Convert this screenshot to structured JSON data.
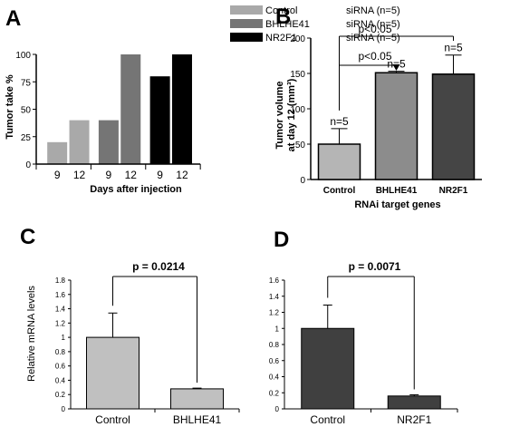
{
  "chart_data": [
    {
      "panel": "A",
      "type": "bar",
      "ylabel": "Tumor take %",
      "xlabel": "Days after injection",
      "ylim": [
        0,
        100
      ],
      "yticks": [
        0,
        25,
        50,
        75,
        100
      ],
      "legend": {
        "placement": "top",
        "entries": [
          {
            "name": "Control",
            "suffix": "siRNA (n=5)",
            "color": "#a9a9a9"
          },
          {
            "name": "BHLHE41",
            "suffix": "siRNA (n=5)",
            "color": "#757575"
          },
          {
            "name": "NR2F1",
            "suffix": "siRNA (n=5)",
            "color": "#000000"
          }
        ]
      },
      "groups": [
        {
          "name": "Control",
          "color": "#a9a9a9",
          "x": [
            "9",
            "12"
          ],
          "values": [
            20,
            40
          ]
        },
        {
          "name": "BHLHE41",
          "color": "#757575",
          "x": [
            "9",
            "12"
          ],
          "values": [
            40,
            100
          ]
        },
        {
          "name": "NR2F1",
          "color": "#000000",
          "x": [
            "9",
            "12"
          ],
          "values": [
            80,
            100
          ]
        }
      ]
    },
    {
      "panel": "B",
      "type": "bar",
      "ylabel_lines": [
        "Tumor volume",
        "at day 12 (mm³)"
      ],
      "xlabel": "RNAi target genes",
      "ylim": [
        0,
        200
      ],
      "yticks": [
        0,
        50,
        100,
        150,
        200
      ],
      "categories": [
        "Control",
        "BHLHE41",
        "NR2F1"
      ],
      "values": [
        50,
        151,
        149
      ],
      "errors": [
        22,
        2,
        27
      ],
      "colors": [
        "#b5b5b5",
        "#8c8c8c",
        "#454545"
      ],
      "n_labels": [
        "n=5",
        "n=5",
        "n=5"
      ],
      "significance": [
        {
          "label": "p<0.05",
          "from": "Control",
          "to": "NR2F1"
        },
        {
          "label": "p<0.05",
          "from": "Control",
          "to": "BHLHE41"
        }
      ]
    },
    {
      "panel": "C",
      "type": "bar",
      "ylabel": "Relative mRNA  levels",
      "ylim": [
        0,
        1.8
      ],
      "yticks": [
        "0",
        "0.2",
        "0.4",
        "0.6",
        "0.8",
        "1",
        "1.2",
        "1.4",
        "1.6",
        "1.8"
      ],
      "categories": [
        "Control",
        "BHLHE41"
      ],
      "values": [
        1.0,
        0.28
      ],
      "errors": [
        0.34,
        0.01
      ],
      "colors": [
        "#c0c0c0",
        "#c0c0c0"
      ],
      "pvalue": "p = 0.0214"
    },
    {
      "panel": "D",
      "type": "bar",
      "ylim": [
        0,
        1.6
      ],
      "yticks": [
        "0",
        "0.2",
        "0.4",
        "0.6",
        "0.8",
        "1",
        "1.2",
        "1.4",
        "1.6"
      ],
      "categories": [
        "Control",
        "NR2F1"
      ],
      "values": [
        1.0,
        0.16
      ],
      "errors": [
        0.29,
        0.015
      ],
      "colors": [
        "#404040",
        "#404040"
      ],
      "pvalue": "p = 0.0071"
    }
  ]
}
